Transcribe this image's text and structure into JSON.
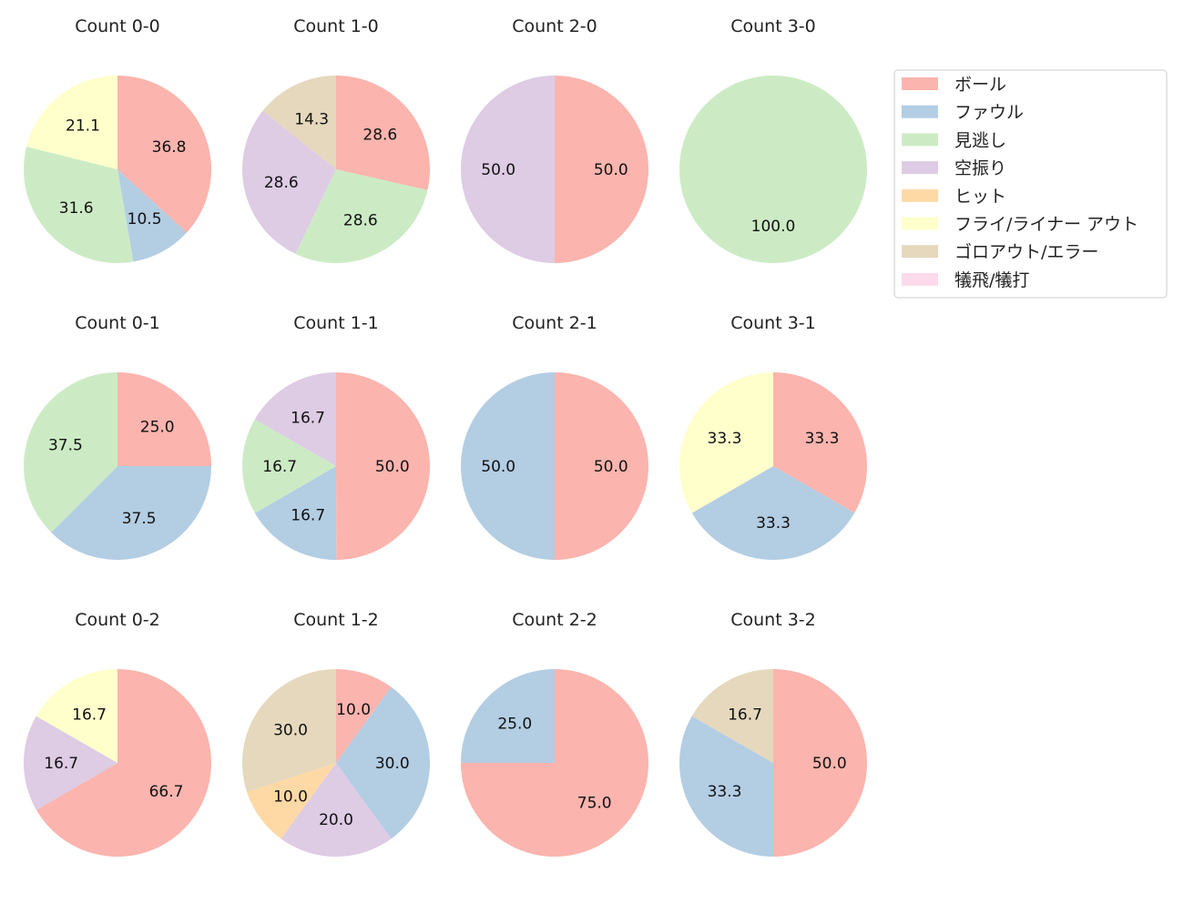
{
  "chart_data": [
    {
      "type": "pie",
      "title": "Count 0-0",
      "labels": [
        "ボール",
        "ファウル",
        "見逃し",
        "フライ/ライナー アウト"
      ],
      "values": [
        36.8,
        10.5,
        31.6,
        21.1
      ]
    },
    {
      "type": "pie",
      "title": "Count 1-0",
      "labels": [
        "ボール",
        "見逃し",
        "空振り",
        "ゴロアウト/エラー"
      ],
      "values": [
        28.6,
        28.6,
        28.6,
        14.3
      ]
    },
    {
      "type": "pie",
      "title": "Count 2-0",
      "labels": [
        "ボール",
        "空振り"
      ],
      "values": [
        50.0,
        50.0
      ]
    },
    {
      "type": "pie",
      "title": "Count 3-0",
      "labels": [
        "見逃し"
      ],
      "values": [
        100.0
      ]
    },
    {
      "type": "pie",
      "title": "Count 0-1",
      "labels": [
        "ボール",
        "ファウル",
        "見逃し"
      ],
      "values": [
        25.0,
        37.5,
        37.5
      ]
    },
    {
      "type": "pie",
      "title": "Count 1-1",
      "labels": [
        "ボール",
        "ファウル",
        "見逃し",
        "空振り"
      ],
      "values": [
        50.0,
        16.7,
        16.7,
        16.7
      ]
    },
    {
      "type": "pie",
      "title": "Count 2-1",
      "labels": [
        "ボール",
        "ファウル"
      ],
      "values": [
        50.0,
        50.0
      ]
    },
    {
      "type": "pie",
      "title": "Count 3-1",
      "labels": [
        "ボール",
        "ファウル",
        "フライ/ライナー アウト"
      ],
      "values": [
        33.3,
        33.3,
        33.3
      ]
    },
    {
      "type": "pie",
      "title": "Count 0-2",
      "labels": [
        "ボール",
        "空振り",
        "フライ/ライナー アウト"
      ],
      "values": [
        66.7,
        16.7,
        16.7
      ]
    },
    {
      "type": "pie",
      "title": "Count 1-2",
      "labels": [
        "ボール",
        "ファウル",
        "空振り",
        "ヒット",
        "ゴロアウト/エラー"
      ],
      "values": [
        10.0,
        30.0,
        20.0,
        10.0,
        30.0
      ]
    },
    {
      "type": "pie",
      "title": "Count 2-2",
      "labels": [
        "ボール",
        "ファウル"
      ],
      "values": [
        75.0,
        25.0
      ]
    },
    {
      "type": "pie",
      "title": "Count 3-2",
      "labels": [
        "ボール",
        "ファウル",
        "ゴロアウト/エラー"
      ],
      "values": [
        50.0,
        33.3,
        16.7
      ]
    }
  ],
  "legend": {
    "placement": "right",
    "entries": [
      {
        "label": "ボール",
        "color": "#fbb4ae"
      },
      {
        "label": "ファウル",
        "color": "#b3cde3"
      },
      {
        "label": "見逃し",
        "color": "#ccebc5"
      },
      {
        "label": "空振り",
        "color": "#decbe4"
      },
      {
        "label": "ヒット",
        "color": "#fed9a6"
      },
      {
        "label": "フライ/ライナー アウト",
        "color": "#ffffcc"
      },
      {
        "label": "ゴロアウト/エラー",
        "color": "#e5d8bd"
      },
      {
        "label": "犠飛/犠打",
        "color": "#fddaec"
      }
    ]
  }
}
